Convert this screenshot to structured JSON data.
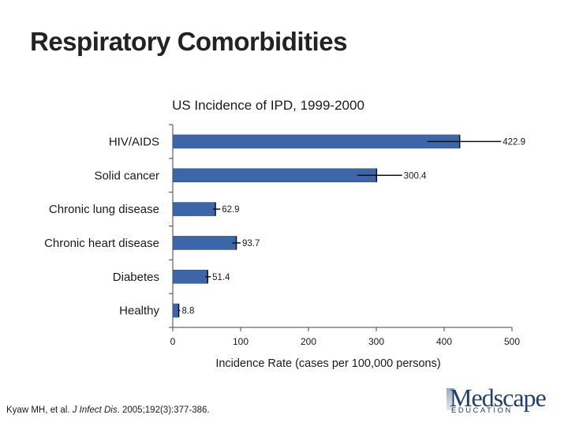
{
  "slide": {
    "title": "Respiratory Comorbidities",
    "citation_prefix": "Kyaw MH, et al. ",
    "citation_journal": "J Infect Dis",
    "citation_suffix": ". 2005;192(3):377-386."
  },
  "logo": {
    "name": "Medscape",
    "subtitle": "EDUCATION"
  },
  "colors": {
    "bar": "#3d66a8",
    "bar_edge": "#2c4f8c",
    "axis": "#444444",
    "error_bar": "#111111"
  },
  "chart_data": {
    "type": "bar",
    "orientation": "horizontal",
    "title": "US Incidence of IPD, 1999-2000",
    "xlabel": "Incidence Rate (cases per 100,000 persons)",
    "ylabel": "",
    "xlim": [
      0,
      500
    ],
    "xticks": [
      0,
      100,
      200,
      300,
      400,
      500
    ],
    "grid": false,
    "categories": [
      "HIV/AIDS",
      "Solid cancer",
      "Chronic lung disease",
      "Chronic heart disease",
      "Diabetes",
      "Healthy"
    ],
    "values": [
      422.9,
      300.4,
      62.9,
      93.7,
      51.4,
      8.8
    ],
    "data_labels": [
      "422.9",
      "300.4",
      "62.9",
      "93.7",
      "51.4",
      "8.8"
    ],
    "error_bars": [
      {
        "low": 375,
        "high": 484
      },
      {
        "low": 272,
        "high": 338
      },
      {
        "low": 59,
        "high": 70
      },
      {
        "low": 88,
        "high": 100
      },
      {
        "low": 48,
        "high": 56
      },
      {
        "low": 8,
        "high": 11
      }
    ]
  }
}
